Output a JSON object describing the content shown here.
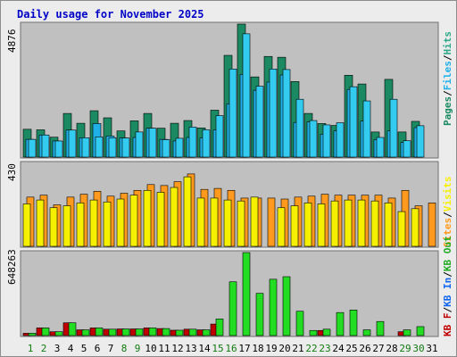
{
  "title": "Daily usage for November 2025",
  "colors": {
    "pages": "#1b8a62",
    "files": "#20b0e8",
    "hits": "#33ccf0",
    "visits": "#f4f000",
    "sites": "#ff9a1e",
    "kbf": "#c00000",
    "kbin": "#1166ee",
    "kbout": "#22dd22",
    "weekend": "#117a11",
    "weekday": "#000000",
    "panel": "#c0c0c0"
  },
  "chart_data": [
    {
      "type": "bar",
      "panel": "top",
      "max_label": "4876",
      "ylim": [
        0,
        4876
      ],
      "categories": [
        "1",
        "2",
        "3",
        "4",
        "5",
        "6",
        "7",
        "8",
        "9",
        "10",
        "11",
        "12",
        "13",
        "14",
        "15",
        "16",
        "17",
        "18",
        "19",
        "20",
        "21",
        "22",
        "23",
        "24",
        "25",
        "26",
        "27",
        "28",
        "29",
        "30",
        "31"
      ],
      "legend": [
        "Pages",
        "/",
        "Files",
        "/",
        "Hits"
      ],
      "series": [
        {
          "name": "Pages",
          "values": [
            1020,
            1000,
            730,
            1600,
            1240,
            1700,
            1440,
            960,
            1330,
            1600,
            1060,
            1240,
            1340,
            1070,
            1720,
            3730,
            4876,
            2940,
            3690,
            3660,
            2770,
            1600,
            1230,
            1160,
            3000,
            2680,
            920,
            2850,
            920,
            1310,
            0
          ]
        },
        {
          "name": "Files",
          "values": [
            650,
            810,
            590,
            990,
            710,
            1230,
            770,
            700,
            720,
            1060,
            650,
            590,
            720,
            700,
            1000,
            1950,
            3030,
            2450,
            2750,
            3010,
            1270,
            1290,
            840,
            960,
            2480,
            1320,
            640,
            960,
            540,
            1080,
            0
          ]
        },
        {
          "name": "Hits",
          "values": [
            650,
            810,
            590,
            990,
            710,
            740,
            710,
            700,
            920,
            1060,
            640,
            690,
            1100,
            1000,
            1520,
            3230,
            4520,
            2600,
            3230,
            3210,
            2120,
            1340,
            1180,
            1260,
            2580,
            2060,
            720,
            2120,
            600,
            1150,
            0
          ]
        }
      ]
    },
    {
      "type": "bar",
      "panel": "middle",
      "max_label": "430",
      "ylim": [
        0,
        430
      ],
      "categories": [
        "1",
        "2",
        "3",
        "4",
        "5",
        "6",
        "7",
        "8",
        "9",
        "10",
        "11",
        "12",
        "13",
        "14",
        "15",
        "16",
        "17",
        "18",
        "19",
        "20",
        "21",
        "22",
        "23",
        "24",
        "25",
        "26",
        "27",
        "28",
        "29",
        "30",
        "31"
      ],
      "legend": [
        "Visits",
        "/",
        "Sites"
      ],
      "series": [
        {
          "name": "Visits",
          "values": [
            220,
            240,
            200,
            210,
            225,
            240,
            230,
            245,
            265,
            290,
            280,
            305,
            360,
            250,
            250,
            240,
            235,
            255,
            0,
            200,
            210,
            225,
            220,
            235,
            240,
            240,
            235,
            225,
            180,
            195,
            0
          ]
        },
        {
          "name": "Sites",
          "values": [
            255,
            265,
            215,
            255,
            270,
            285,
            260,
            275,
            290,
            320,
            315,
            335,
            375,
            295,
            300,
            290,
            250,
            250,
            250,
            245,
            255,
            260,
            270,
            265,
            265,
            265,
            265,
            250,
            290,
            210,
            225
          ]
        }
      ]
    },
    {
      "type": "bar",
      "panel": "bottom",
      "max_label": "648263",
      "ylim": [
        0,
        648263
      ],
      "categories": [
        "1",
        "2",
        "3",
        "4",
        "5",
        "6",
        "7",
        "8",
        "9",
        "10",
        "11",
        "12",
        "13",
        "14",
        "15",
        "16",
        "17",
        "18",
        "19",
        "20",
        "21",
        "22",
        "23",
        "24",
        "25",
        "26",
        "27",
        "28",
        "29",
        "30",
        "31"
      ],
      "legend": [
        "KB F",
        "/",
        "KB In",
        "/",
        "KB Out"
      ],
      "series": [
        {
          "name": "KB F",
          "values": [
            18000,
            60000,
            30000,
            100000,
            45000,
            60000,
            50000,
            52000,
            52000,
            60000,
            55000,
            42000,
            50000,
            45000,
            90000,
            0,
            0,
            0,
            0,
            0,
            0,
            0,
            40000,
            0,
            0,
            0,
            0,
            0,
            30000,
            0,
            0
          ]
        },
        {
          "name": "KB In",
          "values": [
            0,
            0,
            0,
            0,
            0,
            0,
            0,
            0,
            0,
            0,
            0,
            0,
            0,
            0,
            0,
            0,
            0,
            0,
            0,
            0,
            0,
            0,
            0,
            0,
            0,
            0,
            0,
            0,
            0,
            0,
            0
          ]
        },
        {
          "name": "KB Out",
          "values": [
            18000,
            60000,
            30000,
            100000,
            45000,
            60000,
            50000,
            52000,
            52000,
            60000,
            55000,
            42000,
            50000,
            45000,
            130000,
            420000,
            648263,
            330000,
            440000,
            460000,
            190000,
            40000,
            50000,
            180000,
            200000,
            45000,
            110000,
            0,
            45000,
            70000,
            0
          ]
        }
      ]
    }
  ]
}
